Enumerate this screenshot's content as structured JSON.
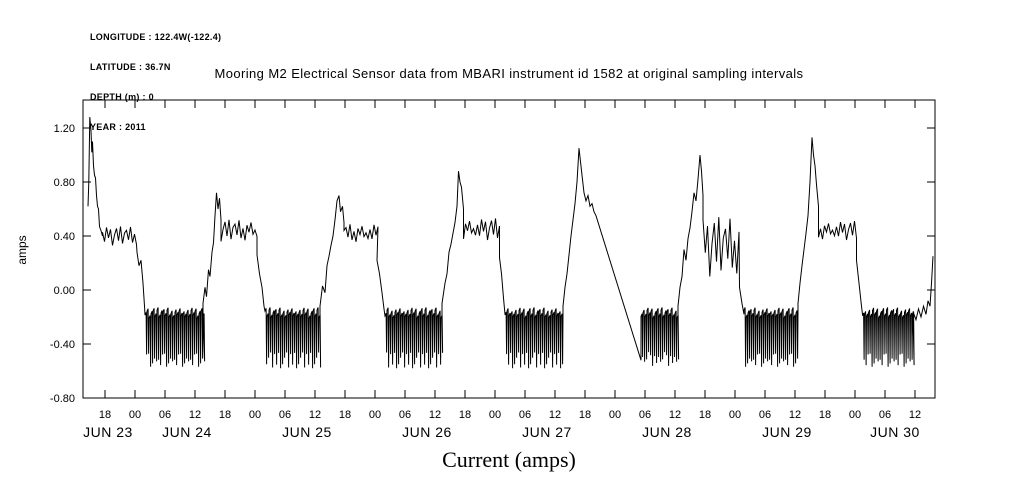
{
  "header_info": {
    "longitude": "LONGITUDE : 122.4W(-122.4)",
    "latitude": "LATITUDE : 36.7N",
    "depth": "DEPTH (m) : 0",
    "year": "YEAR : 2011"
  },
  "chart_data": {
    "type": "line",
    "title": "Mooring M2 Electrical Sensor data from MBARI instrument id 1582 at original sampling intervals",
    "ylabel": "amps",
    "caption": "Current (amps)",
    "series_name": "Current (amps)",
    "line_color": "#000000",
    "background_color": "#ffffff",
    "grid": false,
    "x_unit": "hours from 2011-06-23 00:00",
    "x_range_hours": [
      13.6,
      184
    ],
    "y_range": [
      -0.8,
      1.407
    ],
    "y_ticks": [
      {
        "v": 1.2,
        "label": "1.20"
      },
      {
        "v": 0.8,
        "label": "0.80"
      },
      {
        "v": 0.4,
        "label": "0.40"
      },
      {
        "v": 0.0,
        "label": "0.00"
      },
      {
        "v": -0.4,
        "label": "-0.40"
      },
      {
        "v": -0.8,
        "label": "-0.80"
      }
    ],
    "x_ticks": [
      {
        "t": 18,
        "label": "18"
      },
      {
        "t": 24,
        "label": "00"
      },
      {
        "t": 30,
        "label": "06"
      },
      {
        "t": 36,
        "label": "12"
      },
      {
        "t": 42,
        "label": "18"
      },
      {
        "t": 48,
        "label": "00"
      },
      {
        "t": 54,
        "label": "06"
      },
      {
        "t": 60,
        "label": "12"
      },
      {
        "t": 66,
        "label": "18"
      },
      {
        "t": 72,
        "label": "00"
      },
      {
        "t": 78,
        "label": "06"
      },
      {
        "t": 84,
        "label": "12"
      },
      {
        "t": 90,
        "label": "18"
      },
      {
        "t": 96,
        "label": "00"
      },
      {
        "t": 102,
        "label": "06"
      },
      {
        "t": 108,
        "label": "12"
      },
      {
        "t": 114,
        "label": "18"
      },
      {
        "t": 120,
        "label": "00"
      },
      {
        "t": 126,
        "label": "06"
      },
      {
        "t": 132,
        "label": "12"
      },
      {
        "t": 138,
        "label": "18"
      },
      {
        "t": 144,
        "label": "00"
      },
      {
        "t": 150,
        "label": "06"
      },
      {
        "t": 156,
        "label": "12"
      },
      {
        "t": 162,
        "label": "18"
      },
      {
        "t": 168,
        "label": "00"
      },
      {
        "t": 174,
        "label": "06"
      },
      {
        "t": 180,
        "label": "12"
      }
    ],
    "date_labels": [
      {
        "label": "JUN 23",
        "t": 18.6
      },
      {
        "label": "JUN 24",
        "t": 34.4
      },
      {
        "label": "JUN 25",
        "t": 58.4
      },
      {
        "label": "JUN 26",
        "t": 82.4
      },
      {
        "label": "JUN 27",
        "t": 106.4
      },
      {
        "label": "JUN 28",
        "t": 130.4
      },
      {
        "label": "JUN 29",
        "t": 154.4
      },
      {
        "label": "JUN 30",
        "t": 176.0
      }
    ],
    "noise": [
      0.4,
      -0.6,
      0.9,
      -0.2,
      0.7,
      -1.0,
      0.1,
      0.8,
      -0.5,
      1.0,
      -0.8,
      0.3,
      0.6,
      -0.4,
      0.95,
      -0.7,
      0.2,
      -0.9,
      0.5,
      -0.15,
      0.75,
      -0.35,
      0.05,
      -0.55
    ],
    "segments": [
      {
        "type": "points",
        "pts": [
          [
            14.6,
            0.62
          ],
          [
            14.75,
            0.8
          ],
          [
            14.95,
            1.28
          ],
          [
            15.2,
            1.18
          ],
          [
            15.35,
            1.02
          ],
          [
            15.5,
            1.1
          ],
          [
            15.7,
            0.92
          ],
          [
            15.9,
            0.85
          ],
          [
            16.1,
            0.83
          ],
          [
            16.3,
            0.7
          ],
          [
            16.5,
            0.62
          ],
          [
            16.7,
            0.6
          ],
          [
            16.9,
            0.47
          ],
          [
            17.2,
            0.44
          ],
          [
            17.5,
            0.4
          ]
        ]
      },
      {
        "type": "steps",
        "t0": 17.5,
        "t1": 24.4,
        "level": 0.4,
        "amp": 0.07,
        "dt": 0.4,
        "seed": 0
      },
      {
        "type": "points",
        "pts": [
          [
            24.4,
            0.28
          ],
          [
            24.8,
            0.18
          ],
          [
            25.2,
            0.22
          ],
          [
            25.6,
            0.05
          ],
          [
            25.9,
            -0.12
          ]
        ]
      },
      {
        "type": "osc",
        "t0": 26.0,
        "t1": 37.6,
        "top": -0.18,
        "bottom": -0.52,
        "period": 0.4,
        "bvar": 0.06,
        "tvar": 0.03,
        "seed": 3
      },
      {
        "type": "points",
        "pts": [
          [
            37.6,
            -0.1
          ],
          [
            38.0,
            0.02
          ],
          [
            38.3,
            -0.05
          ],
          [
            38.7,
            0.15
          ],
          [
            39.0,
            0.1
          ],
          [
            39.4,
            0.28
          ],
          [
            39.7,
            0.35
          ],
          [
            40.0,
            0.55
          ],
          [
            40.3,
            0.72
          ],
          [
            40.6,
            0.6
          ],
          [
            40.9,
            0.68
          ],
          [
            41.2,
            0.52
          ]
        ]
      },
      {
        "type": "steps",
        "t0": 41.2,
        "t1": 48.4,
        "level": 0.44,
        "amp": 0.08,
        "dt": 0.4,
        "seed": 5
      },
      {
        "type": "points",
        "pts": [
          [
            48.4,
            0.26
          ],
          [
            48.9,
            0.12
          ],
          [
            49.4,
            0.02
          ],
          [
            49.8,
            -0.12
          ]
        ]
      },
      {
        "type": "osc",
        "t0": 50.0,
        "t1": 61.0,
        "top": -0.18,
        "bottom": -0.52,
        "period": 0.4,
        "bvar": 0.06,
        "tvar": 0.03,
        "seed": 7
      },
      {
        "type": "points",
        "pts": [
          [
            61.0,
            -0.12
          ],
          [
            61.5,
            0.03
          ],
          [
            62.0,
            -0.02
          ],
          [
            62.4,
            0.18
          ],
          [
            62.8,
            0.25
          ],
          [
            63.2,
            0.33
          ],
          [
            63.6,
            0.4
          ],
          [
            64.0,
            0.52
          ],
          [
            64.4,
            0.66
          ],
          [
            64.8,
            0.7
          ],
          [
            65.1,
            0.58
          ],
          [
            65.5,
            0.62
          ],
          [
            65.8,
            0.5
          ]
        ]
      },
      {
        "type": "steps",
        "t0": 65.8,
        "t1": 72.4,
        "level": 0.42,
        "amp": 0.07,
        "dt": 0.4,
        "seed": 11
      },
      {
        "type": "points",
        "pts": [
          [
            72.4,
            0.22
          ],
          [
            72.9,
            0.12
          ],
          [
            73.4,
            -0.02
          ],
          [
            73.8,
            -0.14
          ]
        ]
      },
      {
        "type": "osc",
        "t0": 74.0,
        "t1": 85.4,
        "top": -0.18,
        "bottom": -0.52,
        "period": 0.4,
        "bvar": 0.06,
        "tvar": 0.03,
        "seed": 13
      },
      {
        "type": "points",
        "pts": [
          [
            85.4,
            -0.1
          ],
          [
            86.0,
            0.05
          ],
          [
            86.4,
            0.12
          ],
          [
            86.8,
            0.28
          ],
          [
            87.2,
            0.34
          ],
          [
            87.6,
            0.42
          ],
          [
            88.0,
            0.5
          ],
          [
            88.4,
            0.62
          ],
          [
            88.7,
            0.88
          ],
          [
            89.0,
            0.8
          ],
          [
            89.3,
            0.76
          ],
          [
            89.7,
            0.6
          ]
        ]
      },
      {
        "type": "steps",
        "t0": 89.7,
        "t1": 96.9,
        "level": 0.45,
        "amp": 0.08,
        "dt": 0.4,
        "seed": 17
      },
      {
        "type": "points",
        "pts": [
          [
            96.9,
            0.24
          ],
          [
            97.3,
            0.12
          ],
          [
            97.7,
            -0.06
          ],
          [
            98.0,
            -0.18
          ]
        ]
      },
      {
        "type": "osc",
        "t0": 98.0,
        "t1": 109.6,
        "top": -0.18,
        "bottom": -0.52,
        "period": 0.4,
        "bvar": 0.06,
        "tvar": 0.03,
        "seed": 19
      },
      {
        "type": "points",
        "pts": [
          [
            109.6,
            -0.12
          ],
          [
            110.0,
            0.02
          ],
          [
            110.4,
            0.12
          ],
          [
            110.8,
            0.26
          ],
          [
            111.2,
            0.4
          ],
          [
            111.6,
            0.52
          ],
          [
            112.0,
            0.64
          ],
          [
            112.4,
            0.8
          ],
          [
            112.8,
            1.05
          ],
          [
            113.1,
            0.95
          ],
          [
            113.4,
            0.85
          ],
          [
            113.8,
            0.72
          ],
          [
            114.2,
            0.66
          ],
          [
            114.6,
            0.7
          ],
          [
            115.0,
            0.62
          ],
          [
            115.4,
            0.64
          ],
          [
            115.8,
            0.58
          ],
          [
            116.2,
            0.55
          ]
        ]
      },
      {
        "type": "points",
        "pts": [
          [
            116.2,
            0.55
          ],
          [
            125.2,
            -0.52
          ]
        ]
      },
      {
        "type": "osc",
        "t0": 125.2,
        "t1": 132.6,
        "top": -0.18,
        "bottom": -0.52,
        "period": 0.4,
        "bvar": 0.06,
        "tvar": 0.03,
        "seed": 23
      },
      {
        "type": "points",
        "pts": [
          [
            132.6,
            -0.12
          ],
          [
            133.0,
            0.02
          ],
          [
            133.4,
            0.1
          ],
          [
            133.8,
            0.3
          ],
          [
            134.2,
            0.22
          ],
          [
            134.6,
            0.38
          ],
          [
            135.0,
            0.46
          ],
          [
            135.4,
            0.58
          ],
          [
            135.8,
            0.72
          ],
          [
            136.2,
            0.66
          ],
          [
            136.6,
            0.82
          ],
          [
            137.0,
            1.0
          ],
          [
            137.3,
            0.88
          ],
          [
            137.6,
            0.7
          ]
        ]
      },
      {
        "type": "steps",
        "t0": 137.6,
        "t1": 144.9,
        "level": 0.32,
        "amp": 0.22,
        "dt": 0.45,
        "seed": 2
      },
      {
        "type": "points",
        "pts": [
          [
            144.9,
            0.02
          ],
          [
            145.4,
            -0.1
          ],
          [
            145.8,
            -0.18
          ]
        ]
      },
      {
        "type": "osc",
        "t0": 145.8,
        "t1": 156.6,
        "top": -0.18,
        "bottom": -0.52,
        "period": 0.4,
        "bvar": 0.06,
        "tvar": 0.03,
        "seed": 9
      },
      {
        "type": "points",
        "pts": [
          [
            156.6,
            -0.1
          ],
          [
            157.0,
            0.05
          ],
          [
            157.4,
            0.18
          ],
          [
            157.8,
            0.3
          ],
          [
            158.2,
            0.42
          ],
          [
            158.6,
            0.55
          ],
          [
            159.0,
            0.8
          ],
          [
            159.4,
            1.13
          ],
          [
            159.7,
            1.0
          ],
          [
            160.0,
            0.92
          ],
          [
            160.3,
            0.78
          ],
          [
            160.7,
            0.62
          ]
        ]
      },
      {
        "type": "steps",
        "t0": 160.7,
        "t1": 168.3,
        "level": 0.44,
        "amp": 0.07,
        "dt": 0.4,
        "seed": 15
      },
      {
        "type": "points",
        "pts": [
          [
            168.3,
            0.22
          ],
          [
            168.8,
            0.05
          ],
          [
            169.3,
            -0.12
          ],
          [
            169.5,
            -0.18
          ]
        ]
      },
      {
        "type": "osc",
        "t0": 169.5,
        "t1": 179.6,
        "top": -0.18,
        "bottom": -0.52,
        "period": 0.4,
        "bvar": 0.06,
        "tvar": 0.03,
        "seed": 21
      },
      {
        "type": "points",
        "pts": [
          [
            179.6,
            -0.16
          ],
          [
            180.2,
            -0.22
          ],
          [
            180.7,
            -0.14
          ],
          [
            181.2,
            -0.2
          ],
          [
            181.7,
            -0.12
          ],
          [
            182.2,
            -0.18
          ],
          [
            182.6,
            -0.08
          ],
          [
            183.0,
            -0.12
          ],
          [
            183.3,
            0.05
          ],
          [
            183.6,
            0.25
          ]
        ]
      }
    ]
  }
}
